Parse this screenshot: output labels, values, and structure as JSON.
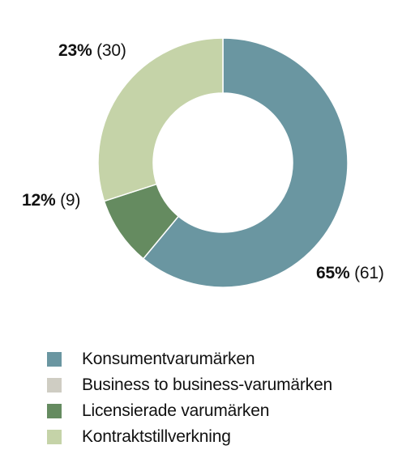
{
  "chart_data": {
    "type": "pie",
    "title": "",
    "categories": [
      "Konsumentvarumärken",
      "Business to business-varumärken",
      "Licensierade varumärken",
      "Kontraktstillverkning"
    ],
    "values": [
      61,
      0,
      9,
      30
    ],
    "percent_labels": [
      "65%",
      "",
      "12%",
      "23%"
    ],
    "count_labels": [
      "(61)",
      "",
      "(9)",
      "(30)"
    ],
    "colors": [
      "#6a96a1",
      "#cfcdc3",
      "#658b60",
      "#c5d3a8"
    ],
    "legend_position": "bottom-left",
    "donut": true
  }
}
